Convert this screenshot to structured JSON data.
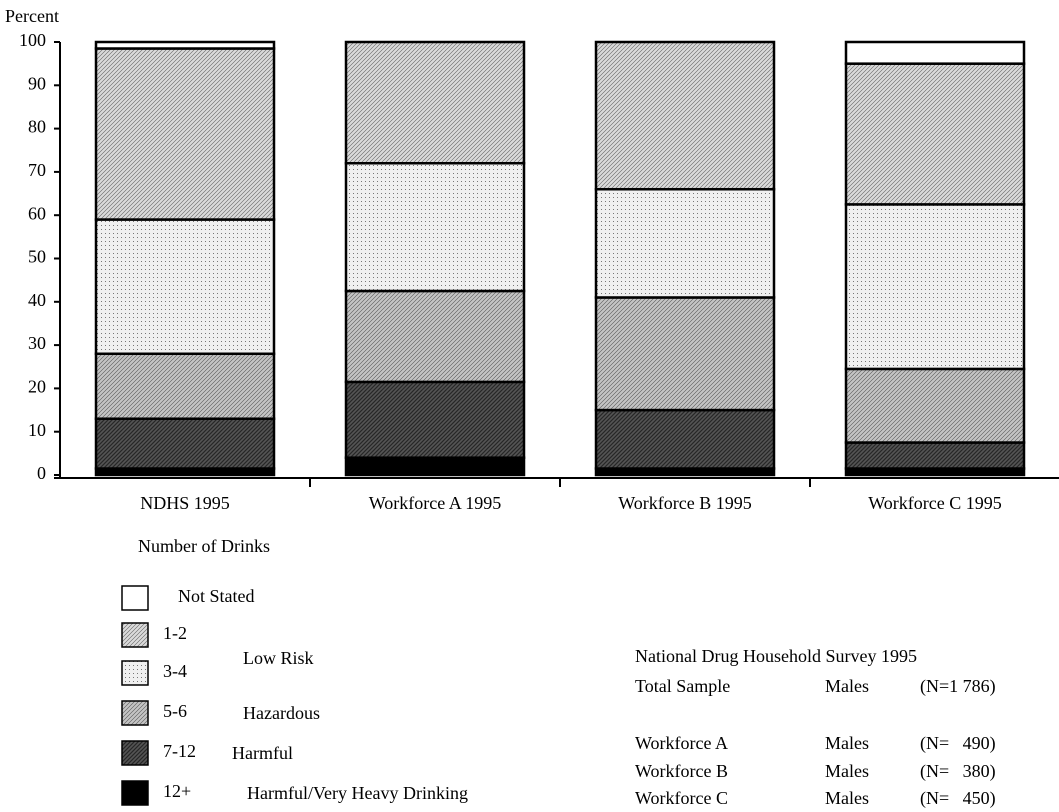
{
  "chart_data": {
    "type": "stacked_bar",
    "y_axis_label": "Percent",
    "x_axis_label": "Number of Drinks",
    "categories": [
      "NDHS 1995",
      "Workforce A 1995",
      "Workforce B 1995",
      "Workforce C 1995"
    ],
    "ylim": [
      0,
      100
    ],
    "yticks": [
      0,
      10,
      20,
      30,
      40,
      50,
      60,
      70,
      80,
      90,
      100
    ],
    "series": [
      {
        "name": "12+",
        "color": "#000000",
        "hatch": "none",
        "values": [
          1.5,
          4,
          1.5,
          1.5
        ]
      },
      {
        "name": "7-12",
        "color": "#555555",
        "hatch": "diagonal",
        "values": [
          11.5,
          17.5,
          13.5,
          6
        ]
      },
      {
        "name": "5-6",
        "color": "#c4c4c4",
        "hatch": "diagonal",
        "values": [
          15,
          21,
          26,
          17
        ]
      },
      {
        "name": "3-4",
        "color": "#f0f0f0",
        "hatch": "dots",
        "values": [
          31,
          29.5,
          25,
          38
        ]
      },
      {
        "name": "1-2",
        "color": "#dadada",
        "hatch": "diagonal",
        "values": [
          39.5,
          28,
          34,
          32.5
        ]
      },
      {
        "name": "Not Stated",
        "color": "#ffffff",
        "hatch": "none",
        "values": [
          1.5,
          0,
          0,
          5
        ]
      }
    ],
    "legend_groups": [
      "Low Risk",
      "Hazardous",
      "Harmful",
      "Harmful/Very Heavy Drinking"
    ],
    "notes": {
      "title": "National Drug Household Survey 1995",
      "rows": [
        [
          "Total Sample",
          "Males",
          "(N=1 786)"
        ],
        [
          "Workforce A",
          "Males",
          "(N=   490)"
        ],
        [
          "Workforce B",
          "Males",
          "(N=   380)"
        ],
        [
          "Workforce C",
          "Males",
          "(N=   450)"
        ]
      ]
    }
  }
}
